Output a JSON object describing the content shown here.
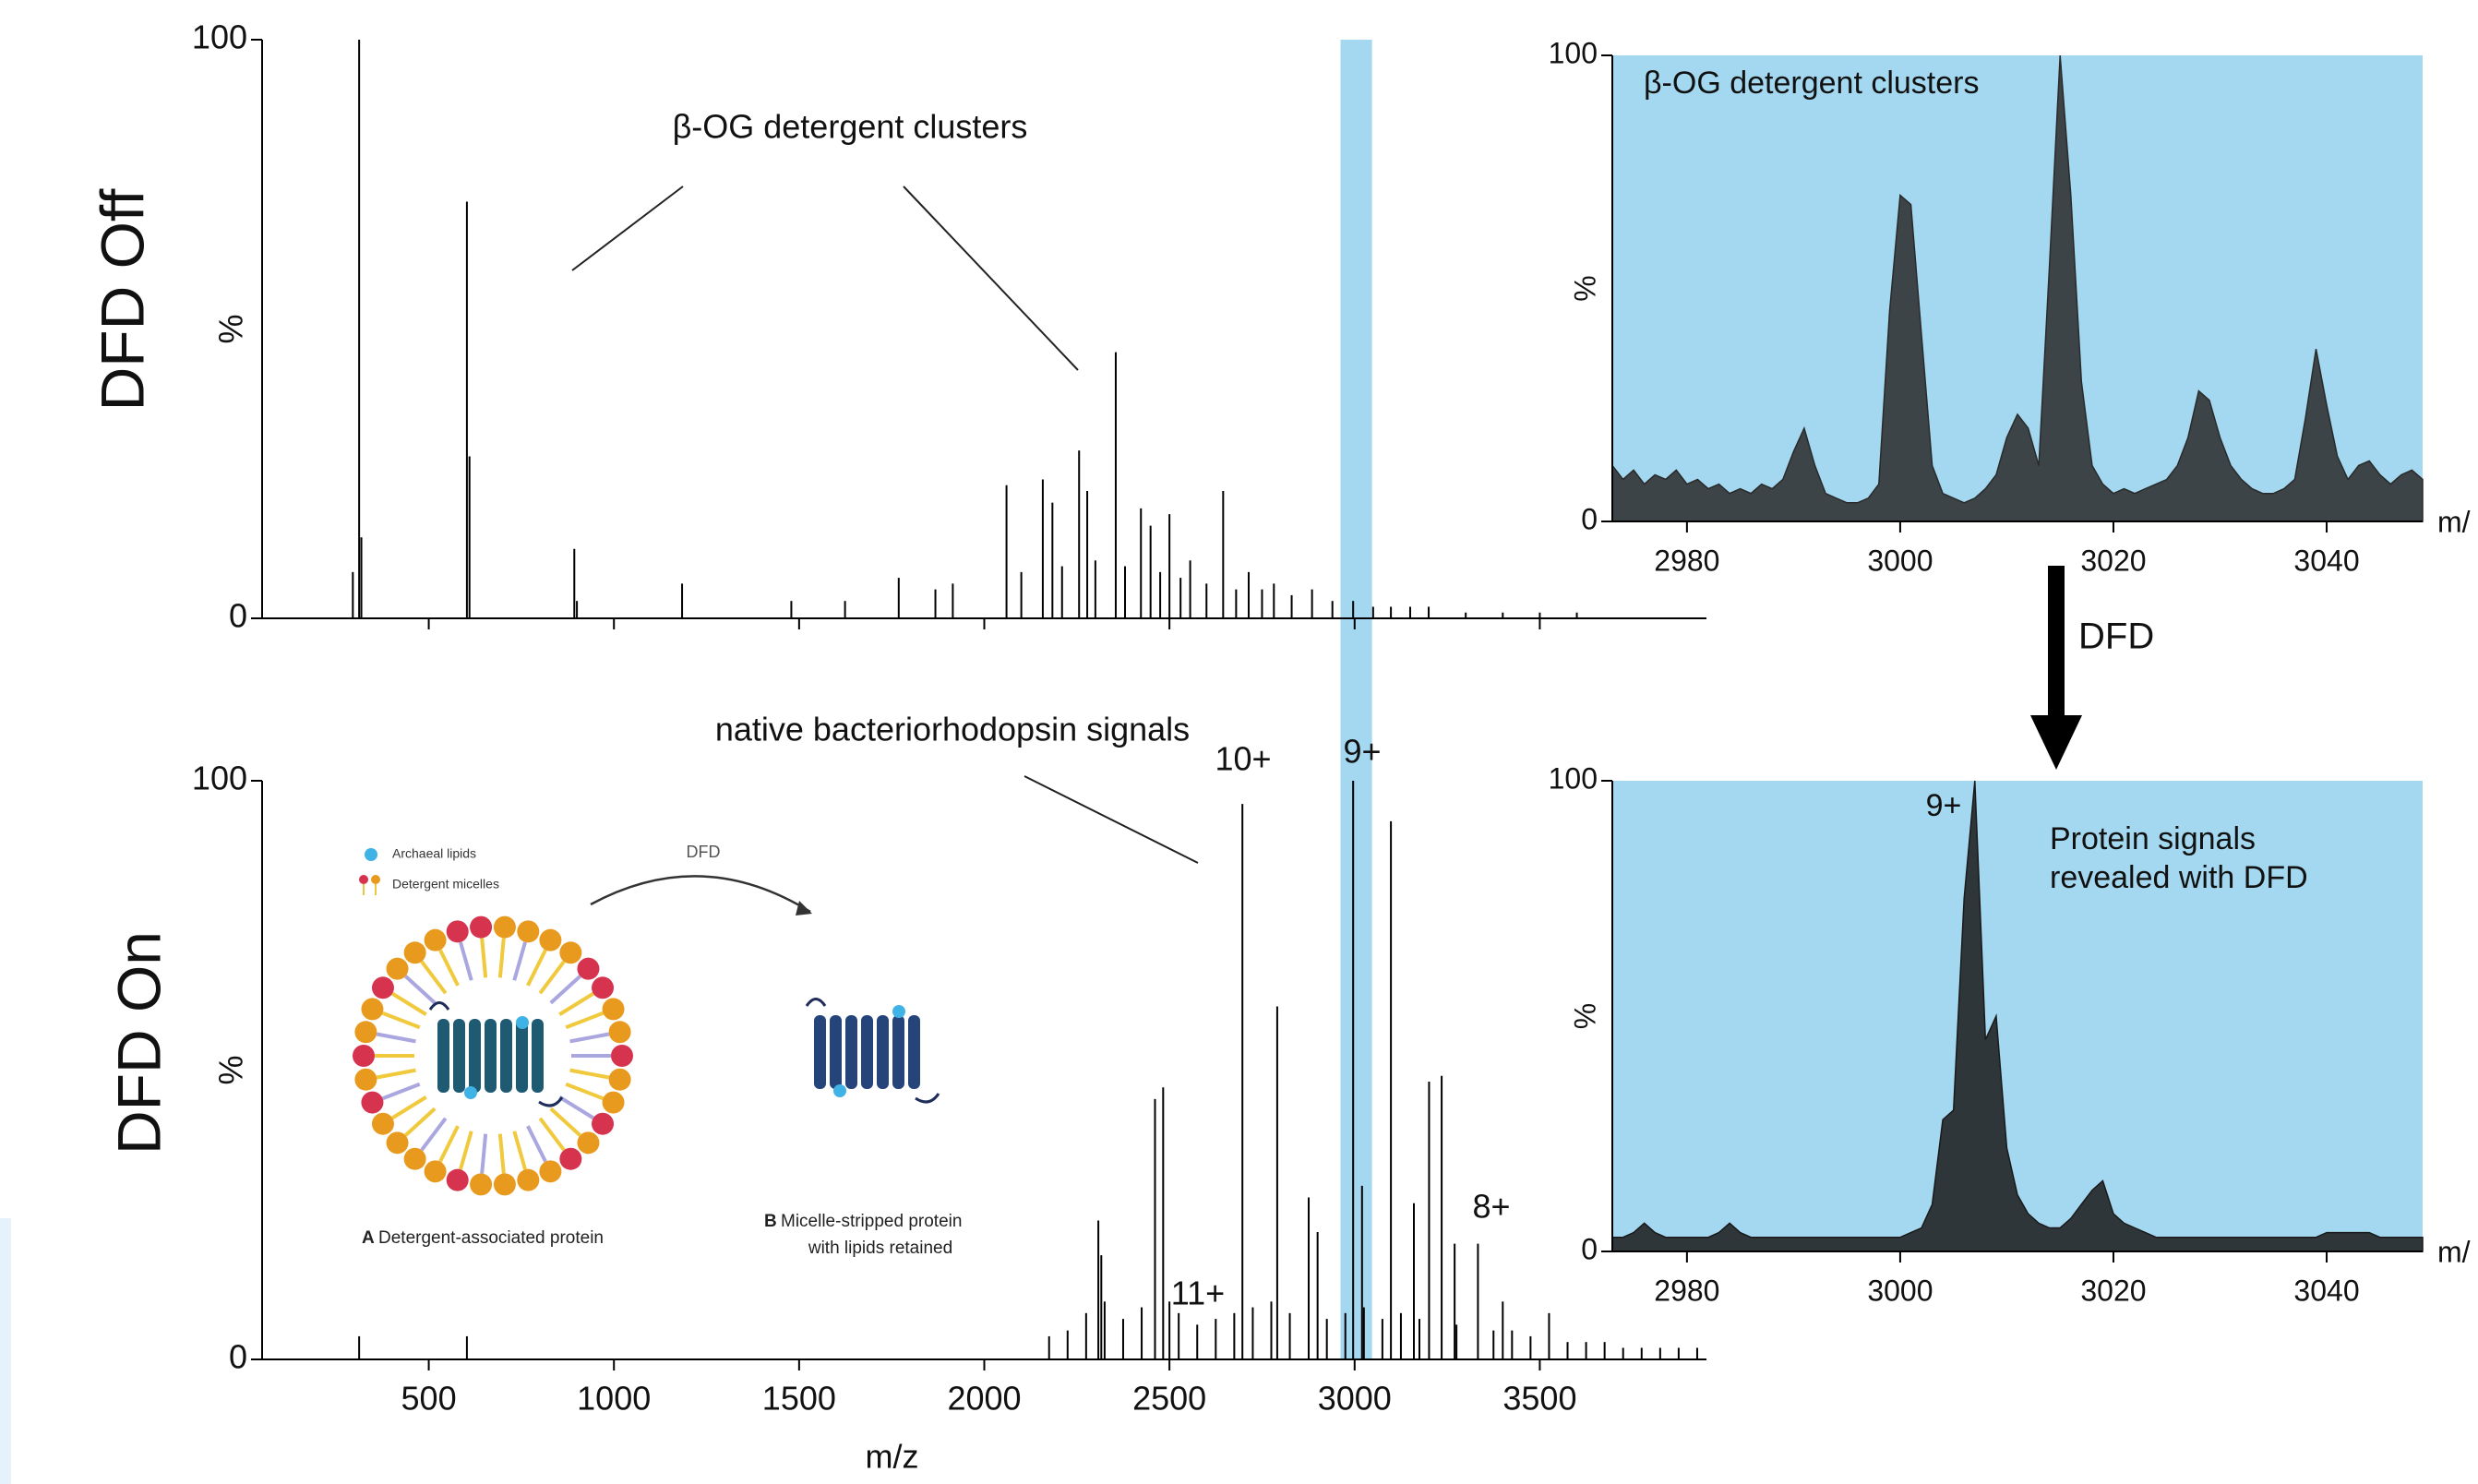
{
  "chart_data": [
    {
      "type": "spectrum",
      "title": "DFD Off",
      "ylabel": "%",
      "x": [
        295,
        312,
        318,
        603,
        610,
        893,
        900,
        1184,
        1479,
        1624,
        1769,
        1868,
        1915,
        2060,
        2100,
        2158,
        2184,
        2210,
        2256,
        2278,
        2300,
        2355,
        2380,
        2423,
        2449,
        2475,
        2500,
        2530,
        2556,
        2600,
        2645,
        2680,
        2714,
        2750,
        2782,
        2830,
        2885,
        2940,
        2996,
        3050,
        3098,
        3150,
        3200,
        3300,
        3400,
        3500,
        3600
      ],
      "values": [
        8,
        100,
        14,
        72,
        28,
        12,
        3,
        6,
        3,
        3,
        7,
        5,
        6,
        23,
        8,
        24,
        20,
        9,
        29,
        22,
        10,
        46,
        9,
        19,
        16,
        8,
        18,
        7,
        10,
        6,
        22,
        5,
        8,
        5,
        6,
        4,
        5,
        3,
        3,
        2,
        2,
        2,
        2,
        1,
        1,
        1,
        1
      ],
      "color": "#000000",
      "xlim": [
        50,
        3950
      ],
      "ylim": [
        0,
        100
      ],
      "yticks": [
        0,
        100
      ],
      "xticks": [
        500,
        1000,
        1500,
        2000,
        2500,
        3000,
        3500
      ],
      "xtick_labels": false,
      "highlight": [
        2962,
        3047
      ],
      "highlight_color": "#a3d8f0",
      "annotations": [
        "β-OG detergent clusters"
      ]
    },
    {
      "type": "spectrum",
      "title": "DFD On",
      "ylabel": "%",
      "xlabel": "m/z",
      "x": [
        312,
        603,
        2175,
        2225,
        2275,
        2308,
        2316,
        2325,
        2375,
        2425,
        2461,
        2483,
        2500,
        2525,
        2575,
        2625,
        2675,
        2697,
        2725,
        2775,
        2791,
        2825,
        2876,
        2900,
        2925,
        2975,
        2996,
        3020,
        3025,
        3075,
        3098,
        3125,
        3160,
        3175,
        3201,
        3235,
        3270,
        3275,
        3333,
        3375,
        3400,
        3425,
        3475,
        3525,
        3575,
        3625,
        3675,
        3725,
        3775,
        3825,
        3875,
        3925
      ],
      "values": [
        4,
        4,
        4,
        5,
        8,
        24,
        18,
        10,
        7,
        9,
        45,
        47,
        10,
        8,
        6,
        7,
        8,
        96,
        9,
        10,
        61,
        8,
        28,
        22,
        7,
        8,
        100,
        30,
        9,
        7,
        93,
        8,
        27,
        7,
        48,
        49,
        20,
        6,
        20,
        5,
        10,
        5,
        4,
        8,
        3,
        3,
        3,
        2,
        2,
        2,
        2,
        2
      ],
      "color": "#000000",
      "xlim": [
        50,
        3950
      ],
      "ylim": [
        0,
        100
      ],
      "yticks": [
        0,
        100
      ],
      "xticks": [
        500,
        1000,
        1500,
        2000,
        2500,
        3000,
        3500
      ],
      "highlight": [
        2962,
        3047
      ],
      "highlight_color": "#a3d8f0",
      "annotations": [
        "native bacteriorhodopsin signals",
        "10+",
        "9+",
        "11+",
        "8+"
      ]
    },
    {
      "type": "area",
      "title": "β-OG detergent clusters",
      "ylabel": "%",
      "xlabel": "m/",
      "x": [
        2973,
        2974,
        2975,
        2976,
        2977,
        2978,
        2979,
        2980,
        2981,
        2982,
        2983,
        2984,
        2985,
        2986,
        2987,
        2988,
        2989,
        2990,
        2991,
        2992,
        2993,
        2994,
        2995,
        2996,
        2997,
        2998,
        2999,
        3000,
        3001,
        3002,
        3003,
        3004,
        3005,
        3006,
        3007,
        3008,
        3009,
        3010,
        3011,
        3012,
        3013,
        3014,
        3015,
        3016,
        3017,
        3018,
        3019,
        3020,
        3021,
        3022,
        3023,
        3024,
        3025,
        3026,
        3027,
        3028,
        3029,
        3030,
        3031,
        3032,
        3033,
        3034,
        3035,
        3036,
        3037,
        3038,
        3039,
        3040,
        3041,
        3042,
        3043,
        3044,
        3045,
        3046,
        3047,
        3048,
        3049
      ],
      "values": [
        12,
        9,
        11,
        8,
        10,
        9,
        11,
        8,
        9,
        7,
        8,
        6,
        7,
        6,
        8,
        7,
        9,
        15,
        20,
        12,
        6,
        5,
        4,
        4,
        5,
        8,
        45,
        70,
        68,
        40,
        12,
        6,
        5,
        4,
        5,
        7,
        10,
        18,
        23,
        20,
        12,
        55,
        100,
        70,
        30,
        12,
        8,
        6,
        7,
        6,
        7,
        8,
        9,
        12,
        18,
        28,
        26,
        18,
        12,
        9,
        7,
        6,
        6,
        7,
        9,
        22,
        37,
        25,
        14,
        9,
        12,
        13,
        10,
        8,
        10,
        11,
        9
      ],
      "color": "#2a2a2a",
      "background": "#a3d8f0",
      "xlim": [
        2973,
        3049
      ],
      "ylim": [
        0,
        100
      ],
      "yticks": [
        0,
        100
      ],
      "xticks": [
        2980,
        3000,
        3020,
        3040
      ]
    },
    {
      "type": "area",
      "ylabel": "%",
      "xlabel": "m/",
      "x": [
        2973,
        2974,
        2975,
        2976,
        2977,
        2978,
        2979,
        2980,
        2981,
        2982,
        2983,
        2984,
        2985,
        2986,
        2987,
        2988,
        2989,
        2990,
        2991,
        2992,
        2993,
        2994,
        2995,
        2996,
        2997,
        2998,
        2999,
        3000,
        3001,
        3002,
        3003,
        3004,
        3005,
        3006,
        3007,
        3008,
        3009,
        3010,
        3011,
        3012,
        3013,
        3014,
        3015,
        3016,
        3017,
        3018,
        3019,
        3020,
        3021,
        3022,
        3023,
        3024,
        3025,
        3026,
        3027,
        3028,
        3029,
        3030,
        3031,
        3032,
        3033,
        3034,
        3035,
        3036,
        3037,
        3038,
        3039,
        3040,
        3041,
        3042,
        3043,
        3044,
        3045,
        3046,
        3047,
        3048,
        3049
      ],
      "values": [
        3,
        3,
        4,
        6,
        4,
        3,
        3,
        3,
        3,
        3,
        4,
        6,
        4,
        3,
        3,
        3,
        3,
        3,
        3,
        3,
        3,
        3,
        3,
        3,
        3,
        3,
        3,
        3,
        4,
        5,
        10,
        28,
        30,
        75,
        100,
        45,
        50,
        22,
        12,
        8,
        6,
        5,
        5,
        7,
        10,
        13,
        15,
        8,
        6,
        5,
        4,
        3,
        3,
        3,
        3,
        3,
        3,
        3,
        3,
        3,
        3,
        3,
        3,
        3,
        3,
        3,
        3,
        4,
        4,
        4,
        4,
        4,
        3,
        3,
        3,
        3,
        3
      ],
      "color": "#1a1a1a",
      "background": "#a3d8f0",
      "xlim": [
        2973,
        3049
      ],
      "ylim": [
        0,
        100
      ],
      "yticks": [
        0,
        100
      ],
      "xticks": [
        2980,
        3000,
        3020,
        3040
      ],
      "annotations": [
        "9+",
        "Protein signals",
        "revealed with DFD"
      ]
    }
  ],
  "arrow_label": "DFD",
  "schematic": {
    "legend": [
      "Archaeal lipids",
      "Detergent micelles"
    ],
    "arrow_label": "DFD",
    "panel_a": {
      "letter": "A",
      "text": "Detergent-associated protein"
    },
    "panel_b": {
      "letter": "B",
      "lines": [
        "Micelle-stripped protein",
        "with lipids retained"
      ]
    }
  }
}
